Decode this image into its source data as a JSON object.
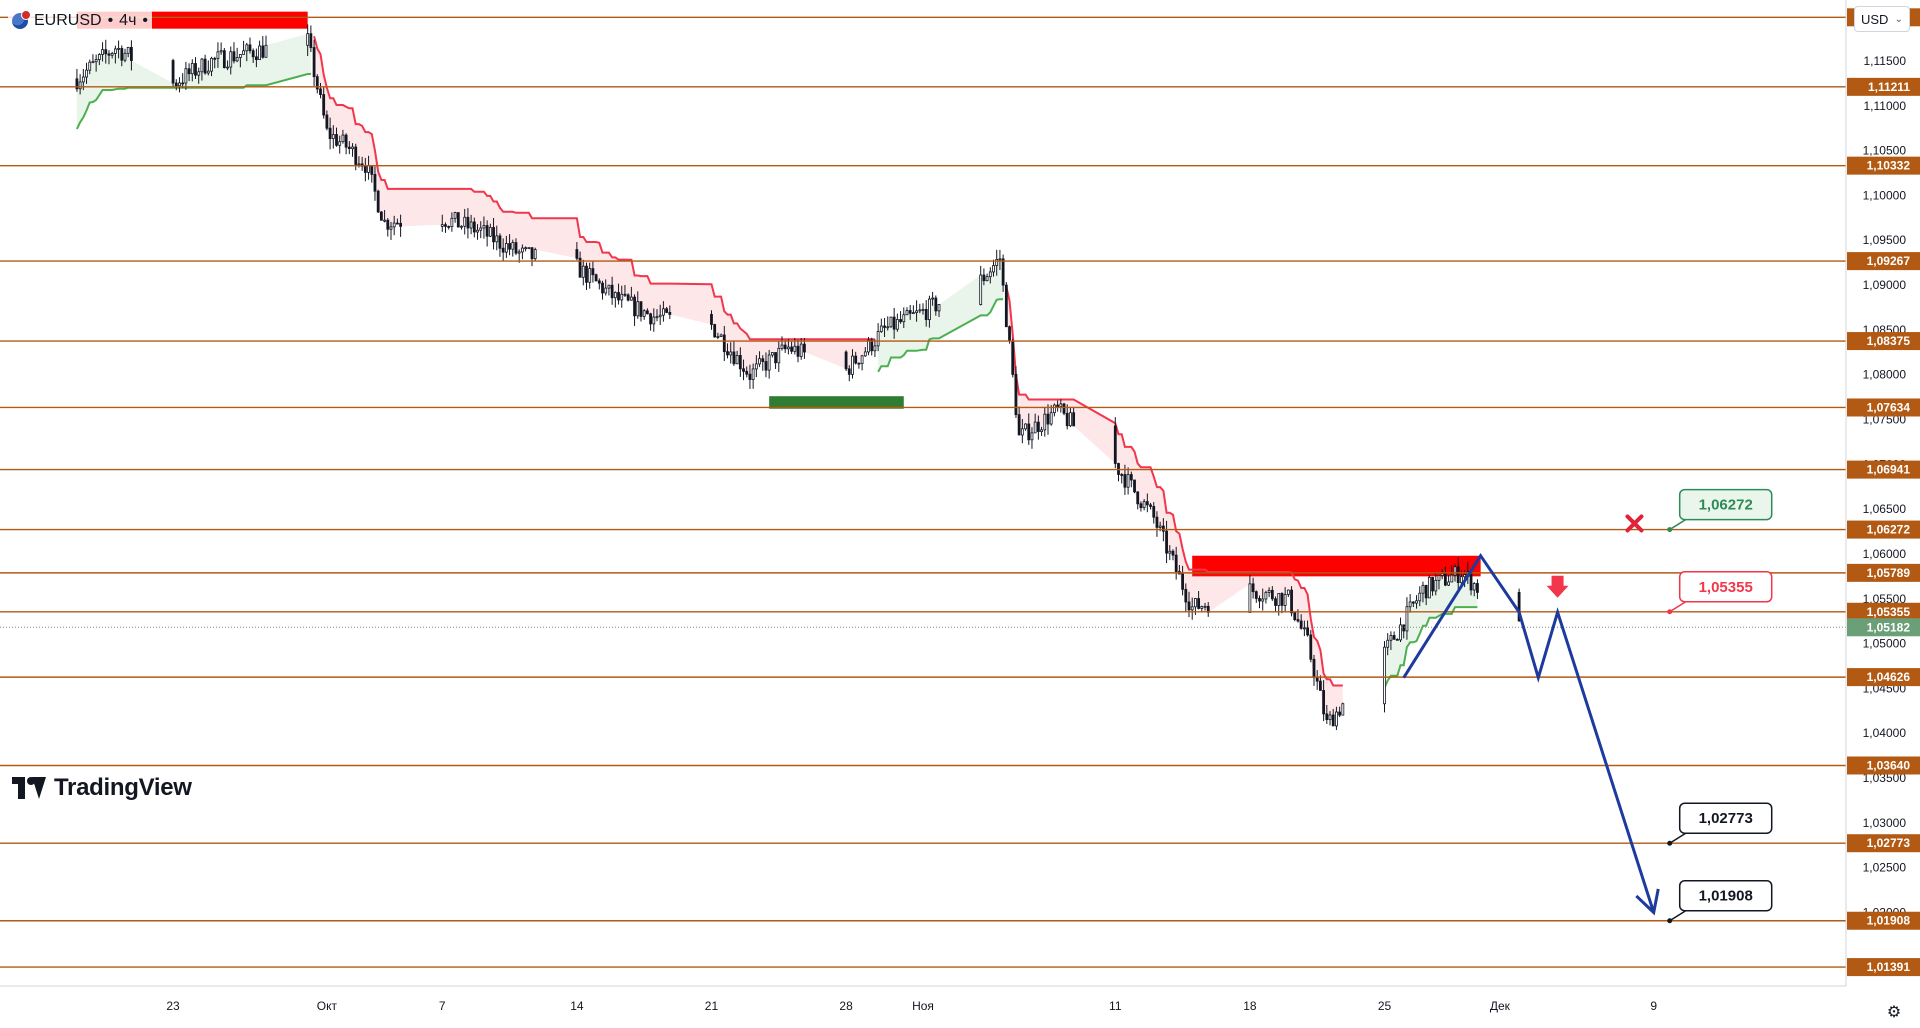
{
  "header": {
    "symbol": "EURUSD",
    "interval": "4ч",
    "separator": "•"
  },
  "currency_selector": {
    "value": "USD",
    "icon": "chevron-down-icon"
  },
  "branding": {
    "name": "TradingView"
  },
  "colors": {
    "level": "#b25a14",
    "bull": "#2e8b57",
    "bear": "#e0323a",
    "current_price": "#6a9f78",
    "projection": "#1d3a9e",
    "supertrend_up": "#4caf50",
    "supertrend_down": "#f2364b"
  },
  "chart_data": {
    "type": "candlestick",
    "symbol": "EURUSD",
    "interval": "4ч",
    "y_axis": {
      "range": [
        1.0118,
        1.1218
      ],
      "ticks": [
        "1,11500",
        "1,11000",
        "1,10500",
        "1,10000",
        "1,09500",
        "1,09000",
        "1,08500",
        "1,08000",
        "1,07500",
        "1,07000",
        "1,06500",
        "1,06000",
        "1,05500",
        "1,05000",
        "1,04500",
        "1,04000",
        "1,03500",
        "1,03000",
        "1,02500",
        "1,02000"
      ],
      "tick_values": [
        1.115,
        1.11,
        1.105,
        1.1,
        1.095,
        1.09,
        1.085,
        1.08,
        1.075,
        1.07,
        1.065,
        1.06,
        1.055,
        1.05,
        1.045,
        1.04,
        1.035,
        1.03,
        1.025,
        1.02
      ]
    },
    "x_axis": {
      "labels": [
        "23",
        "Окт",
        "7",
        "14",
        "21",
        "28",
        "Ноя",
        "11",
        "18",
        "25",
        "Дек",
        "9"
      ],
      "dates": [
        "2024-09-23",
        "2024-10-01",
        "2024-10-07",
        "2024-10-14",
        "2024-10-21",
        "2024-10-28",
        "2024-11-01",
        "2024-11-11",
        "2024-11-18",
        "2024-11-25",
        "2024-12-01",
        "2024-12-09"
      ],
      "last_bar_date": "2024-12-02"
    },
    "horizontal_levels": [
      {
        "label": "1,11987",
        "value": 1.11987
      },
      {
        "label": "1,11211",
        "value": 1.11211
      },
      {
        "label": "1,10332",
        "value": 1.10332
      },
      {
        "label": "1,09267",
        "value": 1.09267
      },
      {
        "label": "1,08375",
        "value": 1.08375
      },
      {
        "label": "1,07634",
        "value": 1.07634
      },
      {
        "label": "1,06941",
        "value": 1.06941
      },
      {
        "label": "1,06272",
        "value": 1.06272
      },
      {
        "label": "1,05789",
        "value": 1.05789
      },
      {
        "label": "1,05355",
        "value": 1.05355
      },
      {
        "label": "1,04626",
        "value": 1.04626
      },
      {
        "label": "1,03640",
        "value": 1.0364
      },
      {
        "label": "1,02773",
        "value": 1.02773
      },
      {
        "label": "1,01908",
        "value": 1.01908
      },
      {
        "label": "1,01391",
        "value": 1.01391
      }
    ],
    "current_price": {
      "label": "1,05182",
      "value": 1.05182
    },
    "close_path": [
      [
        "2024-09-18",
        1.113
      ],
      [
        "2024-09-20",
        1.1165
      ],
      [
        "2024-09-23",
        1.1125
      ],
      [
        "2024-09-25",
        1.115
      ],
      [
        "2024-09-27",
        1.116
      ],
      [
        "2024-09-30",
        1.1172
      ],
      [
        "2024-10-01",
        1.107
      ],
      [
        "2024-10-02",
        1.1055
      ],
      [
        "2024-10-03",
        1.1035
      ],
      [
        "2024-10-04",
        1.097
      ],
      [
        "2024-10-07",
        1.0975
      ],
      [
        "2024-10-09",
        1.096
      ],
      [
        "2024-10-11",
        1.0935
      ],
      [
        "2024-10-14",
        1.092
      ],
      [
        "2024-10-16",
        1.0885
      ],
      [
        "2024-10-18",
        1.0865
      ],
      [
        "2024-10-21",
        1.0855
      ],
      [
        "2024-10-23",
        1.08
      ],
      [
        "2024-10-25",
        1.083
      ],
      [
        "2024-10-28",
        1.0805
      ],
      [
        "2024-10-30",
        1.085
      ],
      [
        "2024-11-01",
        1.087
      ],
      [
        "2024-11-04",
        1.0905
      ],
      [
        "2024-11-05",
        1.093
      ],
      [
        "2024-11-06",
        1.073
      ],
      [
        "2024-11-08",
        1.076
      ],
      [
        "2024-11-11",
        1.07
      ],
      [
        "2024-11-13",
        1.064
      ],
      [
        "2024-11-15",
        1.054
      ],
      [
        "2024-11-18",
        1.056
      ],
      [
        "2024-11-20",
        1.055
      ],
      [
        "2024-11-21",
        1.05
      ],
      [
        "2024-11-22",
        1.041
      ],
      [
        "2024-11-25",
        1.049
      ],
      [
        "2024-11-27",
        1.056
      ],
      [
        "2024-11-29",
        1.058
      ],
      [
        "2024-12-02",
        1.0518
      ]
    ],
    "bearish_zones": [
      {
        "from": "2024-09-18",
        "to": "2024-09-30",
        "low": 1.1186,
        "high": 1.1205
      },
      {
        "from": "2024-11-15",
        "to": "2024-11-30",
        "low": 1.0575,
        "high": 1.0598
      }
    ],
    "bullish_zones": [
      {
        "from": "2024-10-24",
        "to": "2024-10-31",
        "low": 1.0762,
        "high": 1.0776
      }
    ],
    "projection_path": [
      [
        "2024-11-26",
        1.0462
      ],
      [
        "2024-11-30",
        1.0598
      ],
      [
        "2024-12-02",
        1.0535
      ],
      [
        "2024-12-03",
        1.0462
      ],
      [
        "2024-12-04",
        1.0535
      ],
      [
        "2024-12-09",
        1.02
      ]
    ],
    "callouts": [
      {
        "label": "1,06272",
        "value": 1.06272,
        "style": "target-invalidated",
        "date": "2024-12-09"
      },
      {
        "label": "1,05355",
        "value": 1.05355,
        "style": "entry",
        "date": "2024-12-09"
      },
      {
        "label": "1,02773",
        "value": 1.02773,
        "style": "target",
        "date": "2024-12-09"
      },
      {
        "label": "1,01908",
        "value": 1.01908,
        "style": "target",
        "date": "2024-12-09"
      }
    ],
    "markers": [
      {
        "type": "sell-arrow",
        "date": "2024-12-04",
        "value": 1.056
      },
      {
        "type": "cross",
        "date": "2024-12-08",
        "value": 1.0634
      }
    ]
  }
}
